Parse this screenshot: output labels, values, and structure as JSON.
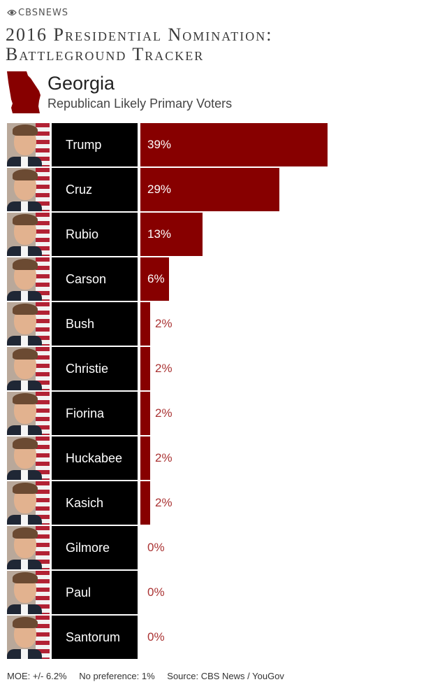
{
  "brand": {
    "logo_text": "CBSNEWS",
    "logo_icon": "cbs-eye-icon"
  },
  "header": {
    "title_lines": [
      "2016 Presidential Nomination:",
      "Battleground Tracker"
    ],
    "state": "Georgia",
    "subtitle": "Republican Likely Primary Voters",
    "state_icon": "georgia-map-icon"
  },
  "colors": {
    "bar": "#870000",
    "name_box": "#000000",
    "outside_label": "#aa3333"
  },
  "chart_data": {
    "type": "bar",
    "orientation": "horizontal",
    "categories": [
      "Trump",
      "Cruz",
      "Rubio",
      "Carson",
      "Bush",
      "Christie",
      "Fiorina",
      "Huckabee",
      "Kasich",
      "Gilmore",
      "Paul",
      "Santorum"
    ],
    "values": [
      39,
      29,
      13,
      6,
      2,
      2,
      2,
      2,
      2,
      0,
      0,
      0
    ],
    "value_labels": [
      "39%",
      "29%",
      "13%",
      "6%",
      "2%",
      "2%",
      "2%",
      "2%",
      "2%",
      "0%",
      "0%",
      "0%"
    ],
    "unit": "%",
    "xlim": [
      0,
      100
    ],
    "grid": false,
    "legend": "none"
  },
  "footer": {
    "moe": "MOE: +/- 6.2%",
    "no_preference": "No preference: 1%",
    "source": "Source: CBS News / YouGov"
  }
}
